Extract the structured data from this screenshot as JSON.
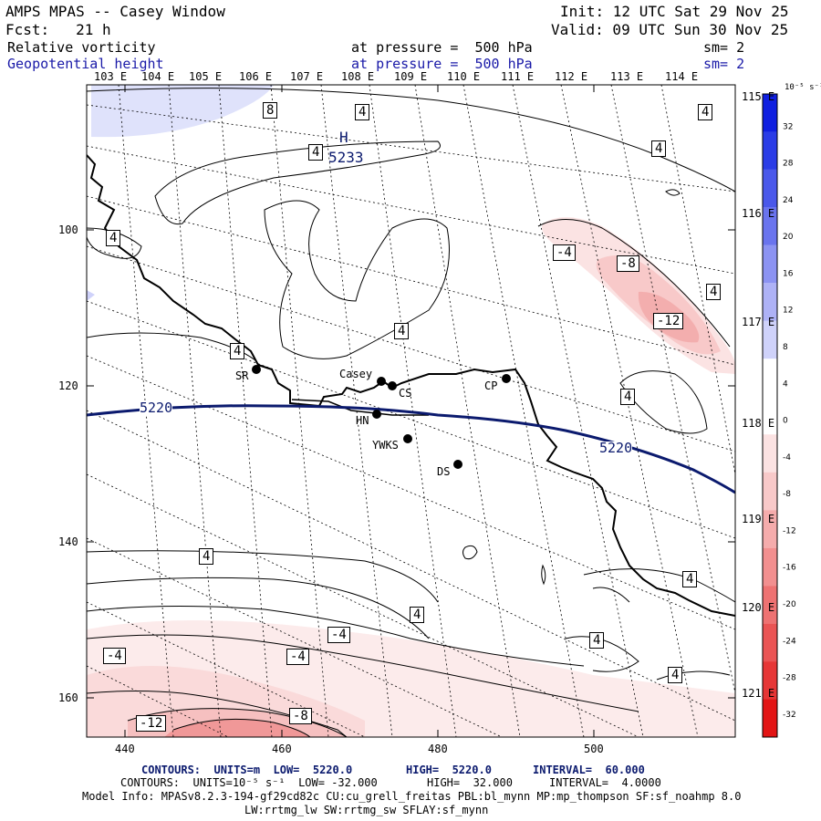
{
  "header": {
    "title": "AMPS MPAS -- Casey Window",
    "init": "Init: 12 UTC Sat 29 Nov 25",
    "fcst": "Fcst:   21 h",
    "valid": "Valid: 09 UTC Sun 30 Nov 25",
    "field1": "Relative vorticity",
    "field1_level": "at pressure =  500 hPa",
    "field1_sm": "sm= 2",
    "field2": "Geopotential height",
    "field2_level": "at pressure =  500 hPa",
    "field2_sm": "sm= 2"
  },
  "map": {
    "lon_labels": [
      "103 E",
      "104 E",
      "105 E",
      "106 E",
      "107 E",
      "108 E",
      "109 E",
      "110 E",
      "111 E",
      "112 E",
      "113 E",
      "114 E"
    ],
    "right_lat_labels": [
      "115 E",
      "116 E",
      "117 E",
      "118 E",
      "119 E",
      "120 E",
      "121 E"
    ],
    "y_ticks": [
      "100",
      "120",
      "140",
      "160"
    ],
    "x_ticks": [
      "440",
      "460",
      "480",
      "500"
    ],
    "height_contour_labels": [
      "5220",
      "5220"
    ],
    "high_label": "H",
    "high_value": "5233",
    "vort_labels": [
      "8",
      "4",
      "4",
      "4",
      "4",
      "4",
      "-4",
      "-8",
      "4",
      "-12",
      "4",
      "4",
      "4",
      "4",
      "4",
      "-4",
      "-4",
      "-4",
      "4",
      "4",
      "-12",
      "-8"
    ],
    "stations": [
      "SR",
      "Casey",
      "CS",
      "CP",
      "HN",
      "YWKS",
      "DS"
    ]
  },
  "colorbar": {
    "unit": "10⁻⁵ s⁻¹",
    "labels": [
      "32",
      "28",
      "24",
      "20",
      "16",
      "12",
      "8",
      "4",
      "0",
      "-4",
      "-8",
      "-12",
      "-16",
      "-20",
      "-24",
      "-28",
      "-32"
    ],
    "colors": [
      "#0f1fe0",
      "#2a3ce6",
      "#4a58ea",
      "#6a74ee",
      "#8c93f2",
      "#aeb2f6",
      "#cfd2fa",
      "#ffffff",
      "#ffffff",
      "#fbe2e2",
      "#f8c9c9",
      "#f5acac",
      "#f28f8f",
      "#ee7272",
      "#ea5454",
      "#e63636",
      "#e21414"
    ]
  },
  "footer": {
    "line1_a": "CONTOURS:  UNITS=m  LOW=  5220.0",
    "line1_b": "HIGH=  5220.0",
    "line1_c": "INTERVAL=  60.000",
    "line2_a": "CONTOURS:  UNITS=10⁻⁵ s⁻¹  LOW= -32.000",
    "line2_b": "HIGH=  32.000",
    "line2_c": "INTERVAL=  4.0000",
    "model_info": "Model Info: MPASv8.2.3-194-gf29cd82c CU:cu_grell_freitas PBL:bl_mynn MP:mp_thompson SF:sf_noahmp 8.0",
    "model_info2": "LW:rrtmg_lw SW:rrtmg_sw SFLAY:sf_mynn"
  }
}
